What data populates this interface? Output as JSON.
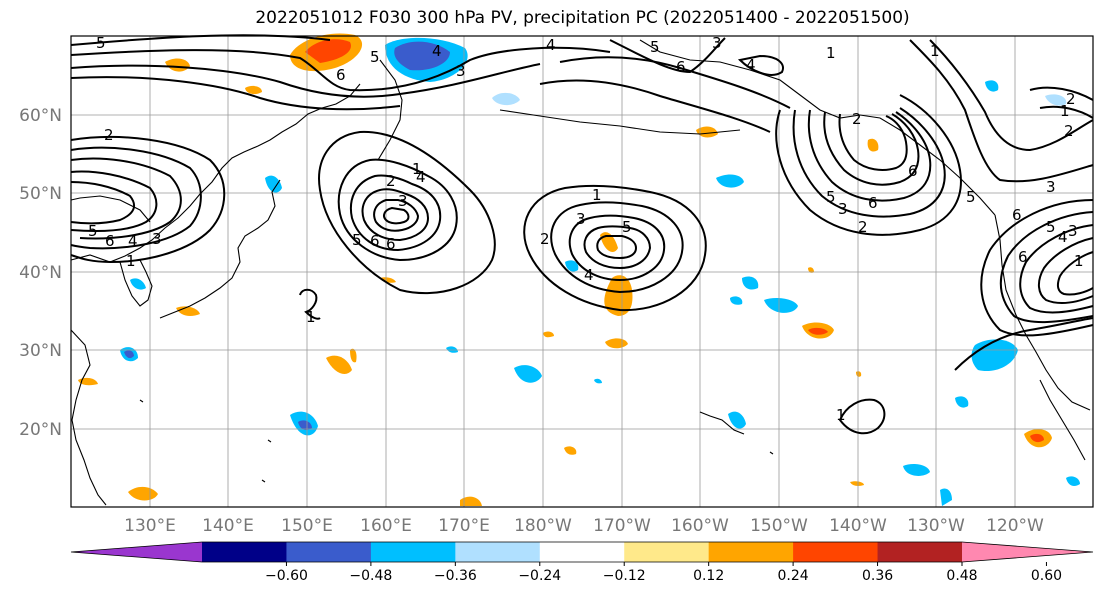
{
  "title": "2022051012 F030 300 hPa PV, precipitation PC (2022051400 - 2022051500)",
  "lat_labels": [
    "60°N",
    "50°N",
    "40°N",
    "30°N",
    "20°N"
  ],
  "lon_labels": [
    "130°E",
    "140°E",
    "150°E",
    "160°E",
    "170°E",
    "180°W",
    "170°W",
    "160°W",
    "150°W",
    "140°W",
    "130°W",
    "120°W"
  ],
  "colorbar": {
    "colors": [
      "#9a36cf",
      "#000088",
      "#3a5ccc",
      "#00bfff",
      "#b0e0ff",
      "#ffffff",
      "#ffe98a",
      "#ffa500",
      "#ff4500",
      "#b22222",
      "#ff88b0"
    ],
    "tick_labels": [
      "−0.60",
      "−0.48",
      "−0.36",
      "−0.24",
      "−0.12",
      "0.12",
      "0.24",
      "0.36",
      "0.48",
      "0.60"
    ]
  },
  "contour_labels": [
    "5",
    "6",
    "4",
    "3",
    "2",
    "1",
    "1",
    "5",
    "2",
    "6",
    "3",
    "4",
    "5",
    "6",
    "3",
    "5",
    "4",
    "1",
    "3",
    "4",
    "5",
    "6",
    "4",
    "5",
    "6",
    "3",
    "2",
    "1",
    "1",
    "1",
    "2",
    "6",
    "5",
    "6",
    "4",
    "5",
    "3",
    "6",
    "6",
    "5",
    "4",
    "3",
    "2",
    "1",
    "2",
    "1",
    "1",
    "2",
    "3"
  ]
}
